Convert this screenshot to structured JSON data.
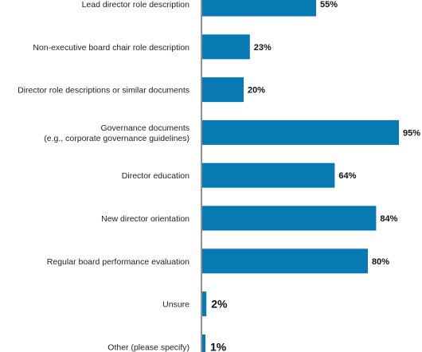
{
  "chart_data": {
    "type": "bar",
    "orientation": "horizontal",
    "categories": [
      [
        "Lead director role description"
      ],
      [
        "Non-executive board chair role description"
      ],
      [
        "Director role descriptions or similar documents"
      ],
      [
        "Governance documents",
        "(e.g., corporate governance guidelines)"
      ],
      [
        "Director education"
      ],
      [
        "New director orientation"
      ],
      [
        "Regular board performance evaluation"
      ],
      [
        "Unsure"
      ],
      [
        "Other (please specify)"
      ]
    ],
    "values": [
      55,
      23,
      20,
      95,
      64,
      84,
      80,
      2,
      1
    ],
    "value_labels": [
      "55%",
      "23%",
      "20%",
      "95%",
      "64%",
      "84%",
      "80%",
      "2%",
      "1%"
    ],
    "xlim": [
      0,
      100
    ],
    "bar_color": "#0779b3",
    "grid": false
  }
}
